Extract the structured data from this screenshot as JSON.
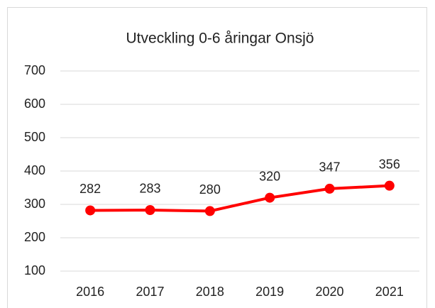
{
  "chart_data": {
    "type": "line",
    "title": "Utveckling 0-6 åringar Onsjö",
    "categories": [
      "2016",
      "2017",
      "2018",
      "2019",
      "2020",
      "2021"
    ],
    "series": [
      {
        "name": "Onsjö",
        "color": "#ff0000",
        "values": [
          282,
          283,
          280,
          320,
          347,
          356
        ]
      }
    ],
    "ylim": [
      100,
      700
    ],
    "yticks": [
      100,
      200,
      300,
      400,
      500,
      600,
      700
    ],
    "grid": true
  }
}
